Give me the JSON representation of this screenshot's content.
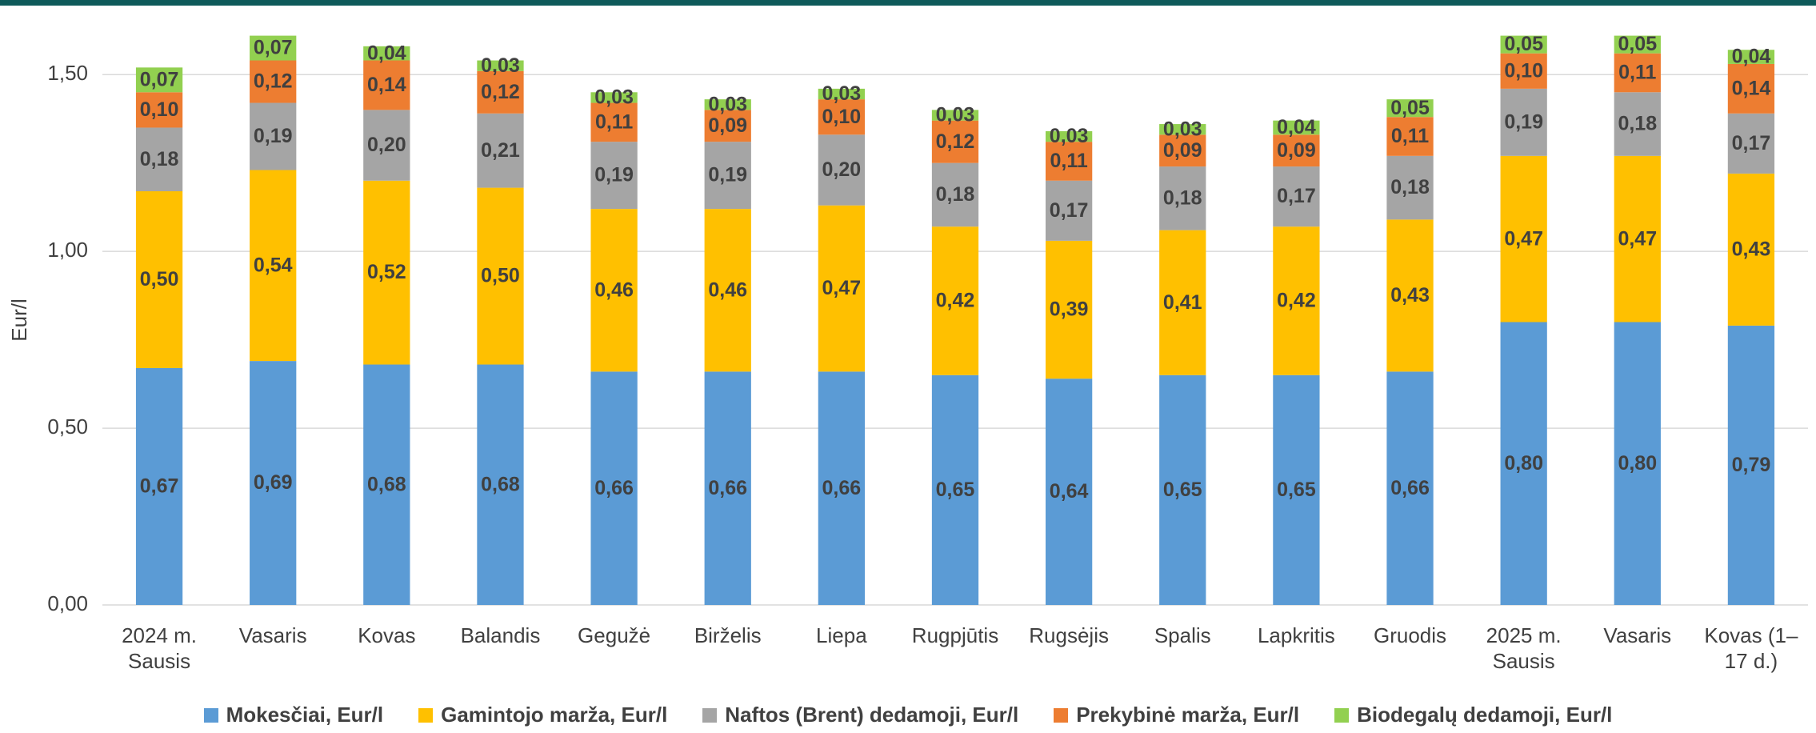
{
  "chart_data": {
    "type": "stacked_bar",
    "y_label": "Eur/l",
    "categories": [
      "2024 m. Sausis",
      "Vasaris",
      "Kovas",
      "Balandis",
      "Gegužė",
      "Birželis",
      "Liepa",
      "Rugpjūtis",
      "Rugsėjis",
      "Spalis",
      "Lapkritis",
      "Gruodis",
      "2025 m. Sausis",
      "Vasaris",
      "Kovas (1–17 d.)"
    ],
    "series": [
      {
        "name": "Mokesčiai, Eur/l",
        "color": "#5b9bd5",
        "values": [
          0.67,
          0.69,
          0.68,
          0.68,
          0.66,
          0.66,
          0.66,
          0.65,
          0.64,
          0.65,
          0.65,
          0.66,
          0.8,
          0.8,
          0.79
        ],
        "value_labels": [
          "0,67",
          "0,69",
          "0,68",
          "0,68",
          "0,66",
          "0,66",
          "0,66",
          "0,65",
          "0,64",
          "0,65",
          "0,65",
          "0,66",
          "0,80",
          "0,80",
          "0,79"
        ]
      },
      {
        "name": "Gamintojo marža, Eur/l",
        "color": "#ffc000",
        "values": [
          0.5,
          0.54,
          0.52,
          0.5,
          0.46,
          0.46,
          0.47,
          0.42,
          0.39,
          0.41,
          0.42,
          0.43,
          0.47,
          0.47,
          0.43
        ],
        "value_labels": [
          "0,50",
          "0,54",
          "0,52",
          "0,50",
          "0,46",
          "0,46",
          "0,47",
          "0,42",
          "0,39",
          "0,41",
          "0,42",
          "0,43",
          "0,47",
          "0,47",
          "0,43"
        ]
      },
      {
        "name": "Naftos (Brent) dedamoji, Eur/l",
        "color": "#a5a5a5",
        "values": [
          0.18,
          0.19,
          0.2,
          0.21,
          0.19,
          0.19,
          0.2,
          0.18,
          0.17,
          0.18,
          0.17,
          0.18,
          0.19,
          0.18,
          0.17
        ],
        "value_labels": [
          "0,18",
          "0,19",
          "0,20",
          "0,21",
          "0,19",
          "0,19",
          "0,20",
          "0,18",
          "0,17",
          "0,18",
          "0,17",
          "0,18",
          "0,19",
          "0,18",
          "0,17"
        ]
      },
      {
        "name": "Prekybinė marža, Eur/l",
        "color": "#ed7d31",
        "values": [
          0.1,
          0.12,
          0.14,
          0.12,
          0.11,
          0.09,
          0.1,
          0.12,
          0.11,
          0.09,
          0.09,
          0.11,
          0.1,
          0.11,
          0.14
        ],
        "value_labels": [
          "0,10",
          "0,12",
          "0,14",
          "0,12",
          "0,11",
          "0,09",
          "0,10",
          "0,12",
          "0,11",
          "0,09",
          "0,09",
          "0,11",
          "0,10",
          "0,11",
          "0,14"
        ]
      },
      {
        "name": "Biodegalų dedamoji, Eur/l",
        "color": "#92d050",
        "values": [
          0.07,
          0.07,
          0.04,
          0.03,
          0.03,
          0.03,
          0.03,
          0.03,
          0.03,
          0.03,
          0.04,
          0.05,
          0.05,
          0.05,
          0.04
        ],
        "value_labels": [
          "0,07",
          "0,07",
          "0,04",
          "0,03",
          "0,03",
          "0,03",
          "0,03",
          "0,03",
          "0,03",
          "0,03",
          "0,04",
          "0,05",
          "0,05",
          "0,05",
          "0,04"
        ]
      }
    ],
    "ylim": [
      0,
      1.6
    ],
    "yticks": [
      {
        "value": 0,
        "label": "0,00"
      },
      {
        "value": 0.5,
        "label": "0,50"
      },
      {
        "value": 1,
        "label": "1,00"
      },
      {
        "value": 1.5,
        "label": "1,50"
      }
    ],
    "grid": true,
    "legend": "bottom"
  }
}
